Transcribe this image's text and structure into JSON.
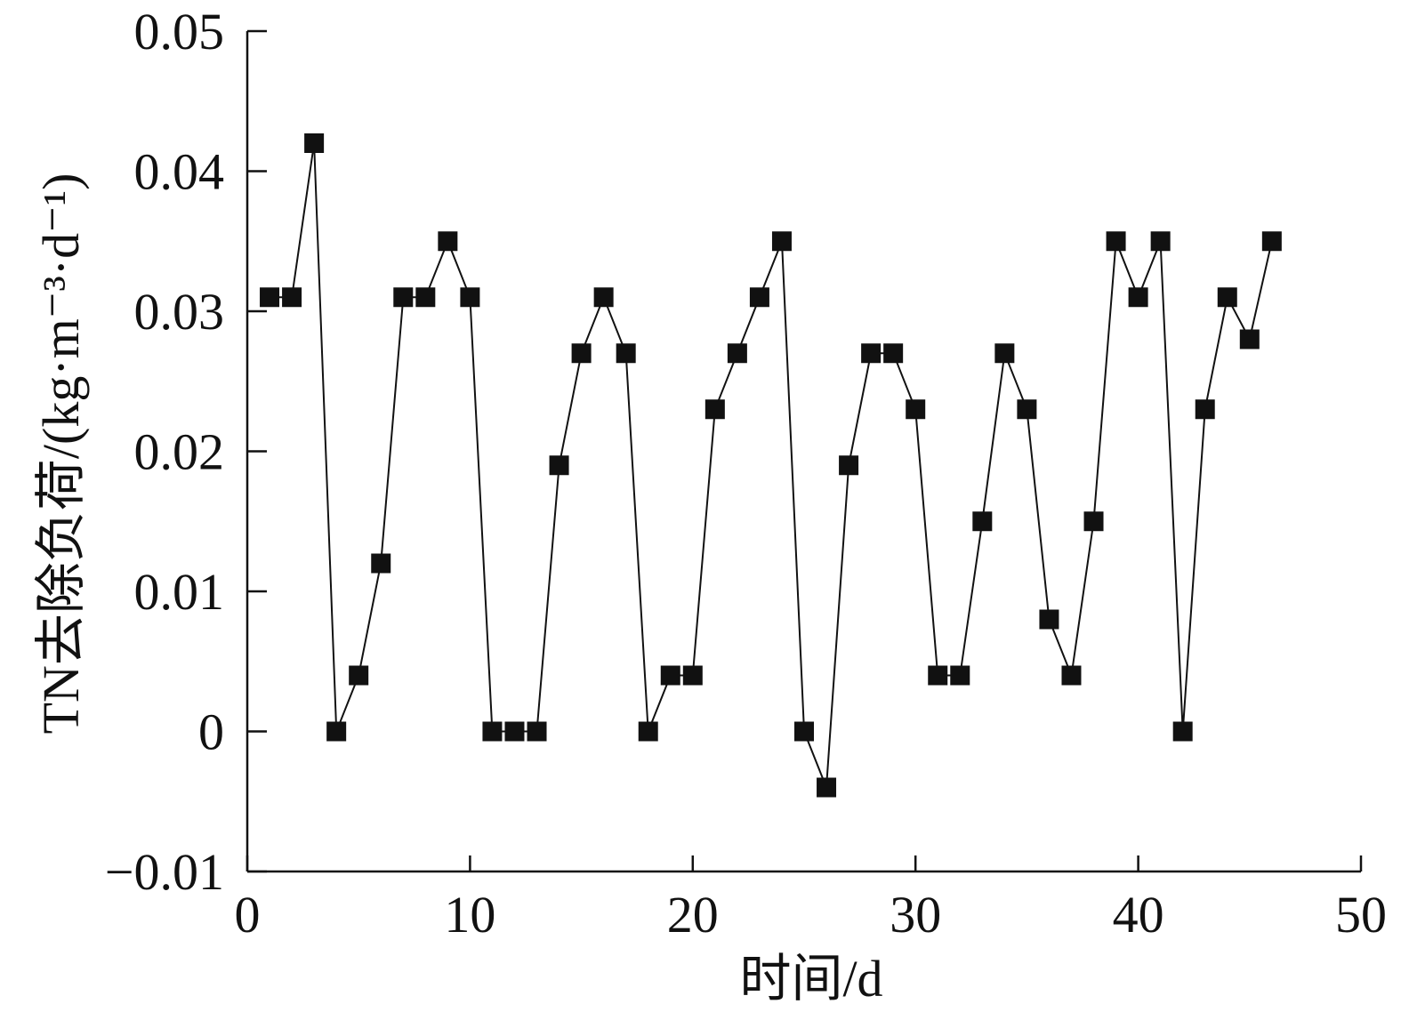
{
  "chart_data": {
    "type": "line",
    "xlabel": "时间/d",
    "ylabel": "TN去除负荷/(kg·m⁻³·d⁻¹)",
    "xlim": [
      0,
      50
    ],
    "ylim": [
      -0.01,
      0.05
    ],
    "x_ticks": [
      0,
      10,
      20,
      30,
      40,
      50
    ],
    "x_tick_labels": [
      "0",
      "10",
      "20",
      "30",
      "40",
      "50"
    ],
    "y_ticks": [
      -0.01,
      0,
      0.01,
      0.02,
      0.03,
      0.04,
      0.05
    ],
    "y_tick_labels": [
      "−0.01",
      "0",
      "0.01",
      "0.02",
      "0.03",
      "0.04",
      "0.05"
    ],
    "grid": false,
    "marker": "square",
    "color": "#111111",
    "series": [
      {
        "x": [
          1,
          2,
          3,
          4,
          5,
          6,
          7,
          8,
          9,
          10,
          11,
          12,
          13,
          14,
          15,
          16,
          17,
          18,
          19,
          20,
          21,
          22,
          23,
          24,
          25,
          26,
          27,
          28,
          29,
          30,
          31,
          32,
          33,
          34,
          35,
          36,
          37,
          38,
          39,
          40,
          41,
          42,
          43,
          44,
          45,
          46
        ],
        "y": [
          0.031,
          0.031,
          0.042,
          0,
          0.004,
          0.012,
          0.031,
          0.031,
          0.035,
          0.031,
          0,
          0,
          0,
          0.019,
          0.027,
          0.031,
          0.027,
          0,
          0.004,
          0.004,
          0.023,
          0.027,
          0.031,
          0.035,
          0,
          -0.004,
          0.019,
          0.027,
          0.027,
          0.023,
          0.004,
          0.004,
          0.015,
          0.027,
          0.023,
          0.008,
          0.004,
          0.015,
          0.035,
          0.031,
          0.035,
          0,
          0.023,
          0.031,
          0.028,
          0.035
        ]
      }
    ]
  }
}
